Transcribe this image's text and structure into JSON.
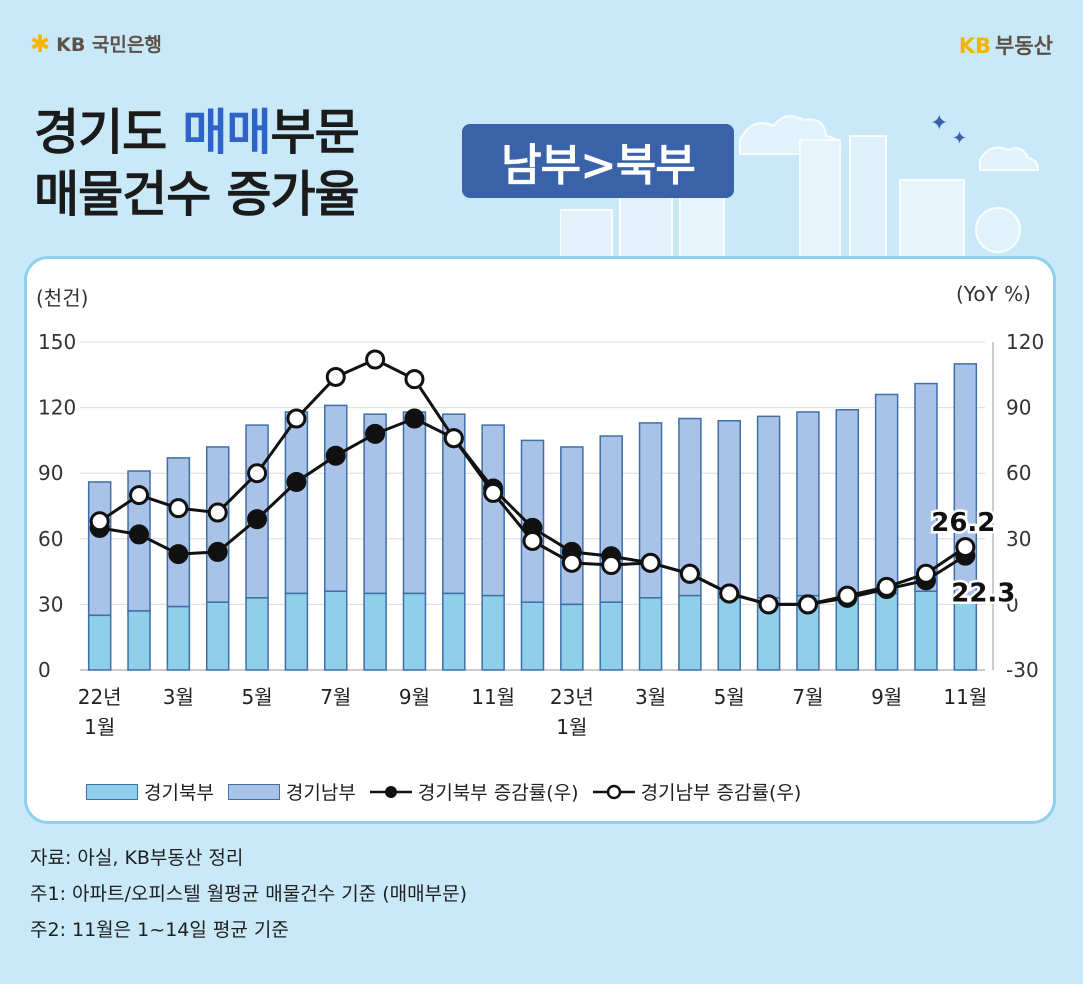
{
  "header": {
    "bank_name": "KB 국민은행",
    "bank_logo_icon": "kb-star-logo-icon",
    "service_kb": "KB",
    "service_name": "부동산"
  },
  "title": {
    "line1_part1": "경기도 ",
    "line1_highlight": "매매",
    "line1_part2": "부문",
    "line2": "매물건수 증가율",
    "badge": "남부>북부"
  },
  "colors": {
    "north_bar": "#8fcfe9",
    "south_bar": "#a9c3e8",
    "bar_border": "#3f6fa8",
    "accent": "#2f63c9",
    "badge_bg": "#3a62a8"
  },
  "chart_data": {
    "type": "bar",
    "stacked": true,
    "left_axis_unit": "(천건)",
    "right_axis_unit": "(YoY %)",
    "ylim_left": [
      0,
      150
    ],
    "yticks_left": [
      "150",
      "120",
      "90",
      "60",
      "30",
      "0"
    ],
    "ylim_right": [
      -30,
      120
    ],
    "yticks_right": [
      "120",
      "90",
      "60",
      "30",
      "0",
      "-30"
    ],
    "x_tick_labels": [
      {
        "index": 0,
        "line1": "22년",
        "line2": "1월"
      },
      {
        "index": 2,
        "line1": "3월",
        "line2": ""
      },
      {
        "index": 4,
        "line1": "5월",
        "line2": ""
      },
      {
        "index": 6,
        "line1": "7월",
        "line2": ""
      },
      {
        "index": 8,
        "line1": "9월",
        "line2": ""
      },
      {
        "index": 10,
        "line1": "11월",
        "line2": ""
      },
      {
        "index": 12,
        "line1": "23년",
        "line2": "1월"
      },
      {
        "index": 14,
        "line1": "3월",
        "line2": ""
      },
      {
        "index": 16,
        "line1": "5월",
        "line2": ""
      },
      {
        "index": 18,
        "line1": "7월",
        "line2": ""
      },
      {
        "index": 20,
        "line1": "9월",
        "line2": ""
      },
      {
        "index": 22,
        "line1": "11월",
        "line2": ""
      }
    ],
    "series": [
      {
        "name": "경기북부",
        "kind": "bar",
        "values": [
          25,
          27,
          29,
          31,
          33,
          35,
          36,
          35,
          35,
          35,
          34,
          31,
          30,
          31,
          33,
          34,
          33,
          33,
          34,
          33,
          35,
          36,
          31
        ]
      },
      {
        "name": "경기남부",
        "kind": "bar",
        "values": [
          61,
          64,
          68,
          71,
          79,
          83,
          85,
          82,
          83,
          82,
          78,
          74,
          72,
          76,
          80,
          81,
          81,
          83,
          84,
          86,
          91,
          95,
          109
        ]
      },
      {
        "name": "경기북부 증감률(우)",
        "kind": "line",
        "marker": "filled",
        "values": [
          35,
          32,
          23,
          24,
          39,
          56,
          68,
          78,
          85,
          76,
          53,
          35,
          24,
          22,
          19,
          14,
          5,
          0,
          0,
          3,
          7,
          11,
          22.3
        ]
      },
      {
        "name": "경기남부 증감률(우)",
        "kind": "line",
        "marker": "hollow",
        "values": [
          38,
          50,
          44,
          42,
          60,
          85,
          104,
          112,
          103,
          76,
          51,
          29,
          19,
          18,
          19,
          14,
          5,
          0,
          0,
          4,
          8,
          14,
          26.2
        ]
      }
    ],
    "annotations": [
      "26.2",
      "22.3"
    ]
  },
  "legend": {
    "north": "경기북부",
    "south": "경기남부",
    "north_rate": "경기북부 증감률(우)",
    "south_rate": "경기남부 증감률(우)"
  },
  "notes": {
    "source": "자료: 아실, KB부동산 정리",
    "note1": "주1: 아파트/오피스텔 월평균 매물건수 기준 (매매부문)",
    "note2": "주2: 11월은 1~14일 평균 기준"
  }
}
